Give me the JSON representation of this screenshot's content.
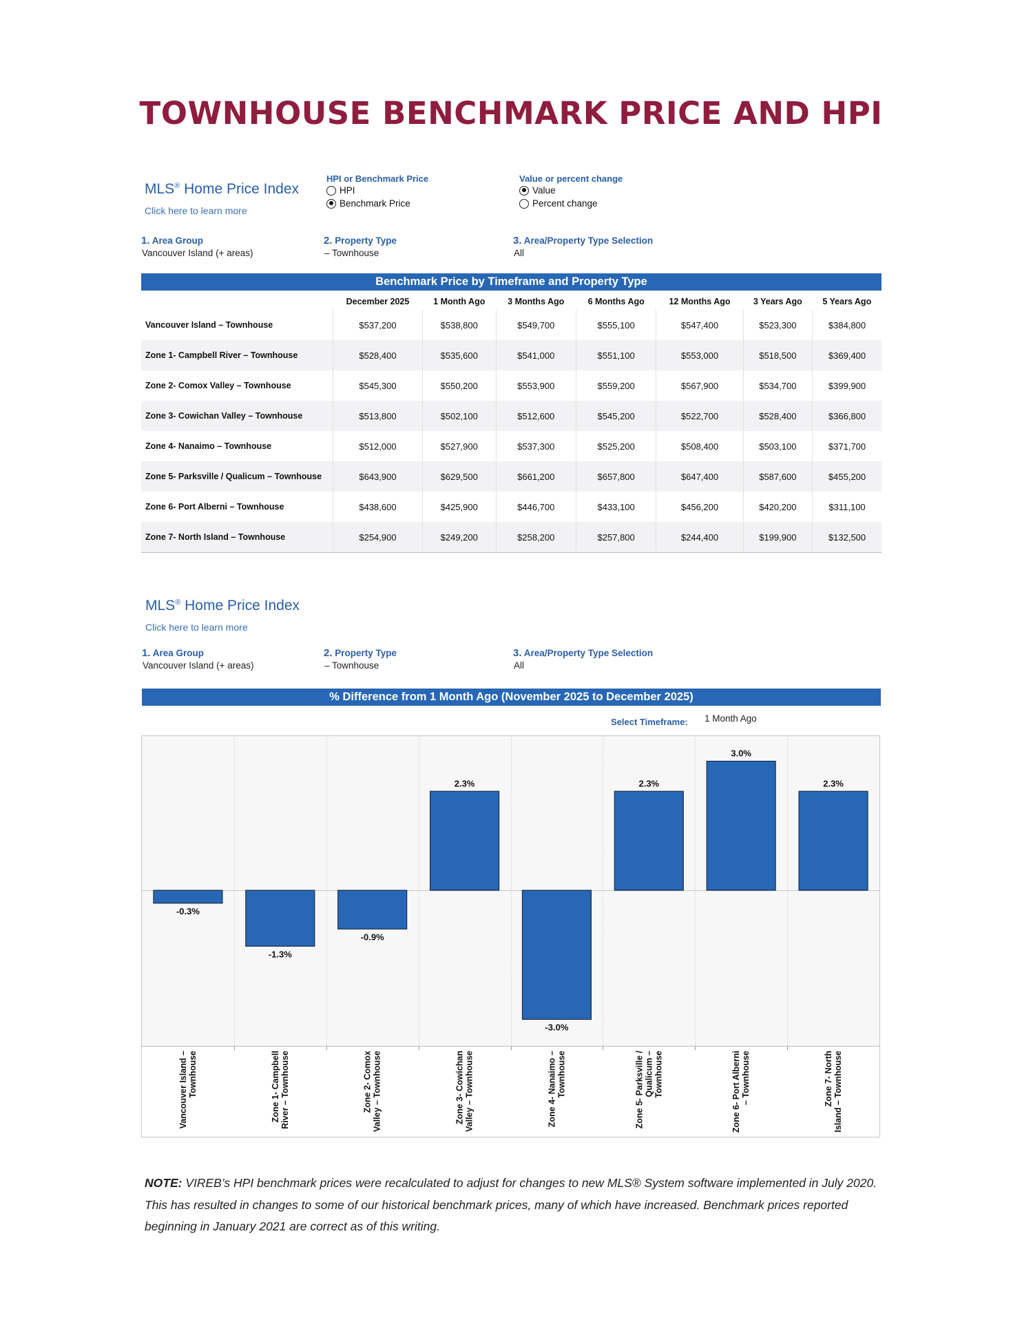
{
  "page_title": "TOWNHOUSE BENCHMARK PRICE AND HPI",
  "section1": {
    "mls_title": "MLS",
    "mls_sup": "®",
    "mls_title_rest": " Home Price Index",
    "learn_more": "Click here to learn more",
    "hpi_group": {
      "heading": "HPI or Benchmark Price",
      "options": [
        {
          "label": "HPI",
          "selected": false
        },
        {
          "label": "Benchmark Price",
          "selected": true
        }
      ]
    },
    "value_group": {
      "heading": "Value or percent change",
      "options": [
        {
          "label": "Value",
          "selected": true
        },
        {
          "label": "Percent change",
          "selected": false
        }
      ]
    },
    "selectors": [
      {
        "num": "1.",
        "label": "Area Group",
        "value": "Vancouver Island (+ areas)"
      },
      {
        "num": "2.",
        "label": "Property Type",
        "value": "– Townhouse"
      },
      {
        "num": "3.",
        "label": "Area/Property Type Selection",
        "value": "All"
      }
    ]
  },
  "table": {
    "title": "Benchmark Price by Timeframe and Property Type",
    "columns": [
      "",
      "December 2025",
      "1 Month Ago",
      "3 Months Ago",
      "6 Months Ago",
      "12 Months Ago",
      "3 Years Ago",
      "5 Years Ago"
    ],
    "rows": [
      {
        "label": "Vancouver Island – Townhouse",
        "values": [
          "$537,200",
          "$538,800",
          "$549,700",
          "$555,100",
          "$547,400",
          "$523,300",
          "$384,800"
        ]
      },
      {
        "label": "Zone 1- Campbell River – Townhouse",
        "values": [
          "$528,400",
          "$535,600",
          "$541,000",
          "$551,100",
          "$553,000",
          "$518,500",
          "$369,400"
        ]
      },
      {
        "label": "Zone 2- Comox Valley – Townhouse",
        "values": [
          "$545,300",
          "$550,200",
          "$553,900",
          "$559,200",
          "$567,900",
          "$534,700",
          "$399,900"
        ]
      },
      {
        "label": "Zone 3- Cowichan Valley – Townhouse",
        "values": [
          "$513,800",
          "$502,100",
          "$512,600",
          "$545,200",
          "$522,700",
          "$528,400",
          "$366,800"
        ]
      },
      {
        "label": "Zone 4- Nanaimo – Townhouse",
        "values": [
          "$512,000",
          "$527,900",
          "$537,300",
          "$525,200",
          "$508,400",
          "$503,100",
          "$371,700"
        ]
      },
      {
        "label": "Zone 5- Parksville / Qualicum – Townhouse",
        "values": [
          "$643,900",
          "$629,500",
          "$661,200",
          "$657,800",
          "$647,400",
          "$587,600",
          "$455,200"
        ]
      },
      {
        "label": "Zone 6- Port Alberni – Townhouse",
        "values": [
          "$438,600",
          "$425,900",
          "$446,700",
          "$433,100",
          "$456,200",
          "$420,200",
          "$311,100"
        ]
      },
      {
        "label": "Zone 7- North Island – Townhouse",
        "values": [
          "$254,900",
          "$249,200",
          "$258,200",
          "$257,800",
          "$244,400",
          "$199,900",
          "$132,500"
        ]
      }
    ]
  },
  "section2": {
    "mls_title": "MLS",
    "mls_sup": "®",
    "mls_title_rest": " Home Price Index",
    "learn_more": "Click here to learn more",
    "selectors": [
      {
        "num": "1.",
        "label": "Area Group",
        "value": "Vancouver Island (+ areas)"
      },
      {
        "num": "2.",
        "label": "Property Type",
        "value": "– Townhouse"
      },
      {
        "num": "3.",
        "label": "Area/Property Type Selection",
        "value": "All"
      }
    ],
    "chart_title": "% Difference from 1 Month Ago (November 2025 to December 2025)",
    "timeframe_label": "Select Timeframe:",
    "timeframe_value": "1 Month Ago"
  },
  "chart_data": {
    "type": "bar",
    "title": "% Difference from 1 Month Ago (November 2025 to December 2025)",
    "categories": [
      "Vancouver Island – Townhouse",
      "Zone 1- Campbell River – Townhouse",
      "Zone 2- Comox Valley – Townhouse",
      "Zone 3- Cowichan Valley – Townhouse",
      "Zone 4- Nanaimo – Townhouse",
      "Zone 5- Parksville / Qualicum – Townhouse",
      "Zone 6- Port Alberni – Townhouse",
      "Zone 7- North Island – Townhouse"
    ],
    "category_label_lines": [
      [
        "Vancouver Island –",
        "Townhouse"
      ],
      [
        "Zone 1- Campbell",
        "River – Townhouse"
      ],
      [
        "Zone 2- Comox",
        "Valley – Townhouse"
      ],
      [
        "Zone 3- Cowichan",
        "Valley – Townhouse"
      ],
      [
        "Zone 4- Nanaimo –",
        "Townhouse"
      ],
      [
        "Zone 5- Parksville /",
        "Qualicum –",
        "Townhouse"
      ],
      [
        "Zone 6- Port Alberni",
        "– Townhouse"
      ],
      [
        "Zone 7- North",
        "Island – Townhouse"
      ]
    ],
    "values": [
      -0.3,
      -1.3,
      -0.9,
      2.3,
      -3.0,
      2.3,
      3.0,
      2.3
    ],
    "value_labels": [
      "-0.3%",
      "-1.3%",
      "-0.9%",
      "2.3%",
      "-3.0%",
      "2.3%",
      "3.0%",
      "2.3%"
    ],
    "ylim": [
      -3.4,
      3.4
    ],
    "bar_color": "#2767b5",
    "grid": "vertical separators"
  },
  "note": {
    "lead": "NOTE:",
    "text": " VIREB’s HPI benchmark prices were recalculated to adjust for changes to new MLS® System software implemented in July 2020. This has resulted in changes to some of our historical benchmark prices, many of which have increased. Benchmark prices reported beginning in January 2021 are correct as of this writing."
  }
}
